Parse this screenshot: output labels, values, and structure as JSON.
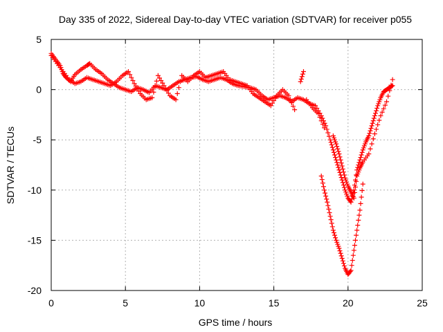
{
  "chart_data": {
    "type": "scatter",
    "title": "Day 335 of 2022, Sidereal Day-to-day VTEC variation (SDTVAR) for receiver p055",
    "xlabel": "GPS time / hours",
    "ylabel": "SDTVAR / TECUs",
    "xlim": [
      0,
      25
    ],
    "ylim": [
      -20,
      5
    ],
    "xticks": [
      0,
      5,
      10,
      15,
      20,
      25
    ],
    "yticks": [
      5,
      0,
      -5,
      -10,
      -15,
      -20
    ],
    "grid": true,
    "marker": "+",
    "color": "#ff0000",
    "series": [
      {
        "name": "SDTVAR",
        "points": [
          [
            0.0,
            3.6
          ],
          [
            0.3,
            3.0
          ],
          [
            0.6,
            2.4
          ],
          [
            0.8,
            1.6
          ],
          [
            1.0,
            1.2
          ],
          [
            1.3,
            0.8
          ],
          [
            1.6,
            1.5
          ],
          [
            2.0,
            2.0
          ],
          [
            2.4,
            2.4
          ],
          [
            2.6,
            2.6
          ],
          [
            3.0,
            2.0
          ],
          [
            3.4,
            1.6
          ],
          [
            3.8,
            1.0
          ],
          [
            4.2,
            0.6
          ],
          [
            4.6,
            0.2
          ],
          [
            5.0,
            0.0
          ],
          [
            5.4,
            -0.2
          ],
          [
            5.8,
            0.2
          ],
          [
            6.2,
            0.0
          ],
          [
            6.6,
            -0.3
          ],
          [
            7.0,
            0.4
          ],
          [
            7.4,
            0.2
          ],
          [
            7.8,
            0.0
          ],
          [
            8.2,
            0.4
          ],
          [
            8.6,
            0.8
          ],
          [
            9.0,
            1.0
          ],
          [
            9.4,
            1.2
          ],
          [
            9.8,
            1.3
          ],
          [
            10.2,
            1.0
          ],
          [
            10.6,
            0.8
          ],
          [
            11.0,
            1.0
          ],
          [
            11.4,
            1.2
          ],
          [
            11.8,
            1.0
          ],
          [
            12.2,
            0.6
          ],
          [
            12.6,
            0.4
          ],
          [
            13.0,
            0.3
          ],
          [
            13.4,
            0.2
          ],
          [
            13.8,
            0.0
          ],
          [
            14.2,
            -0.6
          ],
          [
            14.6,
            -1.0
          ],
          [
            15.0,
            -0.8
          ],
          [
            15.4,
            -0.6
          ],
          [
            15.8,
            -0.8
          ],
          [
            16.2,
            -1.2
          ],
          [
            16.6,
            -0.8
          ],
          [
            17.0,
            -1.0
          ],
          [
            17.4,
            -1.4
          ],
          [
            17.8,
            -1.6
          ],
          [
            18.2,
            -2.6
          ],
          [
            18.5,
            -3.6
          ],
          [
            18.8,
            -5.0
          ],
          [
            19.0,
            -6.0
          ],
          [
            19.2,
            -7.0
          ],
          [
            19.4,
            -8.0
          ],
          [
            19.6,
            -9.0
          ],
          [
            19.8,
            -10.0
          ],
          [
            20.0,
            -10.8
          ],
          [
            20.2,
            -11.2
          ],
          [
            20.4,
            -10.0
          ],
          [
            20.6,
            -8.0
          ],
          [
            20.8,
            -7.0
          ],
          [
            21.0,
            -6.0
          ],
          [
            21.2,
            -5.2
          ],
          [
            21.4,
            -4.6
          ],
          [
            21.6,
            -3.6
          ],
          [
            21.8,
            -2.6
          ],
          [
            22.0,
            -1.6
          ],
          [
            22.2,
            -0.8
          ],
          [
            22.4,
            -0.2
          ],
          [
            22.6,
            0.0
          ],
          [
            22.8,
            0.2
          ],
          [
            23.0,
            0.4
          ],
          [
            0.0,
            3.4
          ],
          [
            0.4,
            2.6
          ],
          [
            0.8,
            1.8
          ],
          [
            1.2,
            1.0
          ],
          [
            1.6,
            0.6
          ],
          [
            2.0,
            0.8
          ],
          [
            2.4,
            1.2
          ],
          [
            2.8,
            1.0
          ],
          [
            3.2,
            0.8
          ],
          [
            3.6,
            0.6
          ],
          [
            4.0,
            0.4
          ],
          [
            4.4,
            0.8
          ],
          [
            4.8,
            1.4
          ],
          [
            5.2,
            1.8
          ],
          [
            5.6,
            0.6
          ],
          [
            6.0,
            -0.4
          ],
          [
            6.4,
            -1.0
          ],
          [
            6.8,
            -0.8
          ],
          [
            7.2,
            1.4
          ],
          [
            7.6,
            0.4
          ],
          [
            8.0,
            -0.6
          ],
          [
            8.4,
            -1.0
          ],
          [
            8.8,
            1.4
          ],
          [
            9.2,
            0.8
          ],
          [
            9.6,
            1.4
          ],
          [
            10.0,
            1.8
          ],
          [
            10.4,
            1.2
          ],
          [
            10.8,
            1.4
          ],
          [
            11.2,
            1.6
          ],
          [
            11.6,
            1.8
          ],
          [
            12.0,
            1.0
          ],
          [
            12.4,
            0.8
          ],
          [
            12.8,
            0.6
          ],
          [
            13.2,
            0.4
          ],
          [
            13.6,
            -0.4
          ],
          [
            14.0,
            -0.8
          ],
          [
            14.4,
            -1.2
          ],
          [
            14.8,
            -1.6
          ],
          [
            15.2,
            -0.6
          ],
          [
            15.6,
            0.0
          ],
          [
            16.0,
            -0.6
          ],
          [
            16.4,
            -2.0
          ],
          [
            16.8,
            0.8
          ],
          [
            17.0,
            1.8
          ],
          [
            17.2,
            -1.0
          ],
          [
            17.6,
            -1.8
          ],
          [
            18.0,
            -2.4
          ],
          [
            18.4,
            -3.8
          ],
          [
            18.2,
            -8.6
          ],
          [
            18.4,
            -10.0
          ],
          [
            18.6,
            -11.2
          ],
          [
            18.8,
            -12.6
          ],
          [
            19.0,
            -14.0
          ],
          [
            19.2,
            -15.0
          ],
          [
            19.4,
            -15.8
          ],
          [
            19.6,
            -16.8
          ],
          [
            19.8,
            -17.8
          ],
          [
            20.0,
            -18.4
          ],
          [
            20.2,
            -18.0
          ],
          [
            20.4,
            -16.0
          ],
          [
            20.6,
            -14.0
          ],
          [
            20.8,
            -12.0
          ],
          [
            21.0,
            -9.4
          ],
          [
            19.0,
            -4.6
          ],
          [
            19.2,
            -5.4
          ],
          [
            19.4,
            -6.4
          ],
          [
            19.6,
            -7.6
          ],
          [
            19.8,
            -8.8
          ],
          [
            20.0,
            -9.6
          ],
          [
            20.2,
            -10.2
          ],
          [
            20.4,
            -10.8
          ],
          [
            20.6,
            -8.6
          ],
          [
            20.8,
            -7.8
          ],
          [
            21.0,
            -7.2
          ],
          [
            21.4,
            -6.4
          ],
          [
            21.8,
            -4.4
          ],
          [
            22.2,
            -2.6
          ],
          [
            22.6,
            -1.2
          ],
          [
            23.0,
            1.0
          ]
        ]
      }
    ]
  }
}
